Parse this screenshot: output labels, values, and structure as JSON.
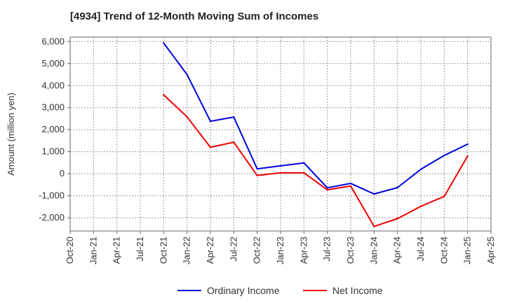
{
  "chart_data": {
    "type": "line",
    "title": "[4934]  Trend of 12-Month Moving Sum of Incomes",
    "xlabel": "",
    "ylabel": "Amount (million yen)",
    "ylim": [
      -2600,
      6200
    ],
    "yticks": [
      6000,
      5000,
      4000,
      3000,
      2000,
      1000,
      0,
      -1000,
      -2000
    ],
    "ytick_labels": [
      "6,000",
      "5,000",
      "4,000",
      "3,000",
      "2,000",
      "1,000",
      "0",
      "-1,000",
      "-2,000"
    ],
    "categories": [
      "Oct-20",
      "Jan-21",
      "Apr-21",
      "Jul-21",
      "Oct-21",
      "Jan-22",
      "Apr-22",
      "Jul-22",
      "Oct-22",
      "Jan-23",
      "Apr-23",
      "Jul-23",
      "Oct-23",
      "Jan-24",
      "Apr-24",
      "Jul-24",
      "Oct-24",
      "Jan-25",
      "Apr-25"
    ],
    "series": [
      {
        "name": "Ordinary Income",
        "color": "#0000dd",
        "values": [
          null,
          null,
          null,
          null,
          5930,
          4500,
          2380,
          2570,
          220,
          360,
          490,
          -640,
          -440,
          -920,
          -630,
          200,
          830,
          1340,
          null
        ]
      },
      {
        "name": "Net Income",
        "color": "#ee0000",
        "values": [
          null,
          null,
          null,
          null,
          3580,
          2580,
          1200,
          1430,
          -80,
          40,
          40,
          -730,
          -560,
          -2390,
          -2040,
          -1480,
          -1030,
          800,
          null
        ]
      }
    ],
    "grid": true,
    "legend_position": "bottom-center"
  }
}
